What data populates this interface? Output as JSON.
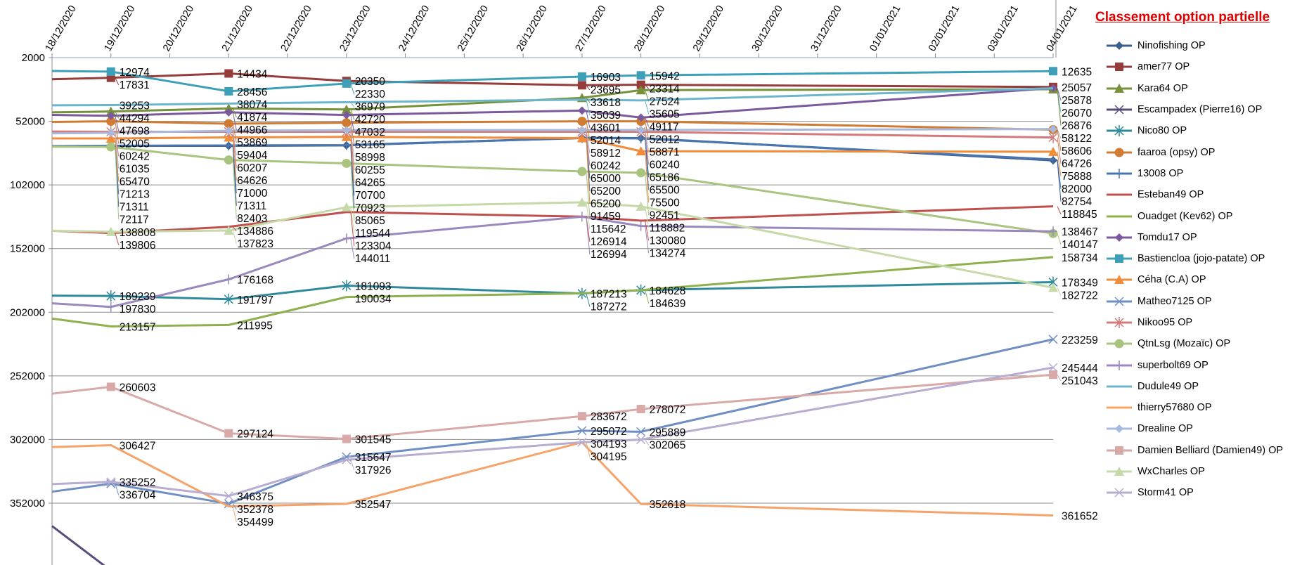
{
  "chart_data": {
    "type": "line",
    "title": "Classement option partielle",
    "y_reversed": true,
    "ylim": [
      2000,
      402000
    ],
    "yticks": [
      2000,
      52000,
      102000,
      152000,
      202000,
      252000,
      302000,
      352000
    ],
    "x": [
      "18/12/2020",
      "19/12/2020",
      "20/12/2020",
      "21/12/2020",
      "22/12/2020",
      "23/12/2020",
      "24/12/2020",
      "25/12/2020",
      "26/12/2020",
      "27/12/2020",
      "28/12/2020",
      "29/12/2020",
      "30/12/2020",
      "31/12/2020",
      "01/01/2021",
      "02/01/2021",
      "03/01/2021",
      "04/01/2021"
    ],
    "grid": true,
    "legend_position": "right",
    "series": [
      {
        "name": "Ninofishing OP",
        "color": "#3b5e91",
        "marker": "diamond",
        "values": [
          71800,
          71311,
          null,
          71311,
          null,
          70923,
          null,
          null,
          null,
          65000,
          65186,
          null,
          null,
          null,
          null,
          null,
          null,
          82754
        ]
      },
      {
        "name": "amer77 OP",
        "color": "#963c3a",
        "marker": "square",
        "values": [
          19000,
          17831,
          null,
          14434,
          null,
          20350,
          null,
          null,
          null,
          23695,
          23314,
          null,
          null,
          null,
          null,
          null,
          null,
          25057
        ]
      },
      {
        "name": "Kara64  OP",
        "color": "#76913a",
        "marker": "triangle",
        "values": [
          45000,
          44294,
          null,
          41874,
          null,
          42720,
          null,
          null,
          null,
          33618,
          27524,
          null,
          null,
          null,
          null,
          null,
          null,
          26876
        ]
      },
      {
        "name": "Escampadex (Pierre16) OP",
        "color": "#5a4a7a",
        "marker": "x",
        "values": [
          370000,
          405000,
          null,
          null,
          null,
          null,
          null,
          null,
          null,
          null,
          null,
          null,
          null,
          null,
          null,
          null,
          null,
          null
        ]
      },
      {
        "name": "Nico80 OP",
        "color": "#2f8a9c",
        "marker": "asterisk",
        "values": [
          189000,
          189239,
          null,
          191797,
          null,
          181093,
          null,
          null,
          null,
          187272,
          184628,
          null,
          null,
          null,
          null,
          null,
          null,
          178349
        ]
      },
      {
        "name": "faaroa (opsy) OP",
        "color": "#d07a32",
        "marker": "circle",
        "values": [
          52500,
          52005,
          null,
          53869,
          null,
          53165,
          null,
          null,
          null,
          52014,
          52012,
          null,
          null,
          null,
          null,
          null,
          null,
          58606
        ]
      },
      {
        "name": "13008 OP",
        "color": "#4a76b0",
        "marker": "plus",
        "values": [
          71500,
          71213,
          null,
          71000,
          null,
          70700,
          null,
          null,
          null,
          65200,
          65500,
          null,
          null,
          null,
          null,
          null,
          null,
          82000
        ]
      },
      {
        "name": "Esteban49 OP",
        "color": "#c0504d",
        "marker": "none",
        "values": [
          138000,
          139806,
          null,
          134886,
          null,
          123304,
          null,
          null,
          null,
          126914,
          130080,
          null,
          null,
          null,
          null,
          null,
          null,
          118845
        ]
      },
      {
        "name": "Ouadget (Kev62) OP",
        "color": "#8fb04e",
        "marker": "none",
        "values": [
          207000,
          213157,
          null,
          211995,
          null,
          190034,
          null,
          null,
          null,
          187213,
          184639,
          null,
          null,
          null,
          null,
          null,
          null,
          158734
        ]
      },
      {
        "name": "Tomdu17 OP",
        "color": "#7a5a9c",
        "marker": "diamond",
        "values": [
          47000,
          47698,
          null,
          44966,
          null,
          47032,
          null,
          null,
          null,
          43601,
          49117,
          null,
          null,
          null,
          null,
          null,
          null,
          25878
        ]
      },
      {
        "name": "Bastiencloa (jojo-patate) OP",
        "color": "#3ea0b8",
        "marker": "square",
        "values": [
          12500,
          12974,
          null,
          28456,
          null,
          22330,
          null,
          null,
          null,
          16903,
          15942,
          null,
          null,
          null,
          null,
          null,
          null,
          12635
        ]
      },
      {
        "name": "Céha (C.A) OP",
        "color": "#f08c3a",
        "marker": "triangle",
        "values": [
          65500,
          65470,
          null,
          64626,
          null,
          64265,
          null,
          null,
          null,
          65200,
          75500,
          null,
          null,
          null,
          null,
          null,
          null,
          75888
        ]
      },
      {
        "name": "Matheo7125 OP",
        "color": "#6f8fc4",
        "marker": "x",
        "values": [
          343000,
          336704,
          null,
          352378,
          null,
          315647,
          null,
          null,
          null,
          295072,
          295889,
          null,
          null,
          null,
          null,
          null,
          null,
          223259
        ]
      },
      {
        "name": "Nikoo95 OP",
        "color": "#d47a7a",
        "marker": "asterisk",
        "values": [
          60000,
          60242,
          null,
          60207,
          null,
          60255,
          null,
          null,
          null,
          60242,
          60240,
          null,
          null,
          null,
          null,
          null,
          null,
          64726
        ]
      },
      {
        "name": "QtnLsg (Mozaïc) OP",
        "color": "#a9c47f",
        "marker": "circle",
        "values": [
          72000,
          72117,
          null,
          82403,
          null,
          85065,
          null,
          null,
          null,
          91459,
          92451,
          null,
          null,
          null,
          null,
          null,
          null,
          140147
        ]
      },
      {
        "name": "superbolt69 OP",
        "color": "#9b88bd",
        "marker": "plus",
        "values": [
          195000,
          197830,
          null,
          176168,
          null,
          144011,
          null,
          null,
          null,
          126994,
          134274,
          null,
          null,
          null,
          null,
          null,
          null,
          138467
        ]
      },
      {
        "name": "Dudule49 OP",
        "color": "#6bb6cc",
        "marker": "none",
        "values": [
          39500,
          39253,
          null,
          38074,
          null,
          36979,
          null,
          null,
          null,
          35039,
          35605,
          null,
          null,
          null,
          null,
          null,
          null,
          26070
        ]
      },
      {
        "name": "thierry57680 OP",
        "color": "#f4a46a",
        "marker": "none",
        "values": [
          308000,
          306427,
          null,
          354499,
          null,
          352547,
          null,
          null,
          null,
          304195,
          352618,
          null,
          null,
          null,
          null,
          null,
          null,
          361652
        ]
      },
      {
        "name": "Drealine OP",
        "color": "#a9b9dc",
        "marker": "diamond",
        "values": [
          61500,
          61035,
          null,
          59404,
          null,
          58998,
          null,
          null,
          null,
          58912,
          58871,
          null,
          null,
          null,
          null,
          null,
          null,
          58122
        ]
      },
      {
        "name": "Damien Belliard (Damien49) OP",
        "color": "#d9a9a8",
        "marker": "square",
        "values": [
          266000,
          260603,
          null,
          297124,
          null,
          301545,
          null,
          null,
          null,
          283672,
          278072,
          null,
          null,
          null,
          null,
          null,
          null,
          251043
        ]
      },
      {
        "name": "WxCharles OP",
        "color": "#c6d9a8",
        "marker": "triangle",
        "values": [
          138000,
          138808,
          null,
          137823,
          null,
          119544,
          null,
          null,
          null,
          115642,
          118882,
          null,
          null,
          null,
          null,
          null,
          null,
          182722
        ]
      },
      {
        "name": "Storm41 OP",
        "color": "#b8acd0",
        "marker": "x",
        "values": [
          337000,
          335252,
          null,
          346375,
          null,
          317926,
          null,
          null,
          null,
          304193,
          302065,
          null,
          null,
          null,
          null,
          null,
          null,
          245444
        ]
      }
    ]
  }
}
